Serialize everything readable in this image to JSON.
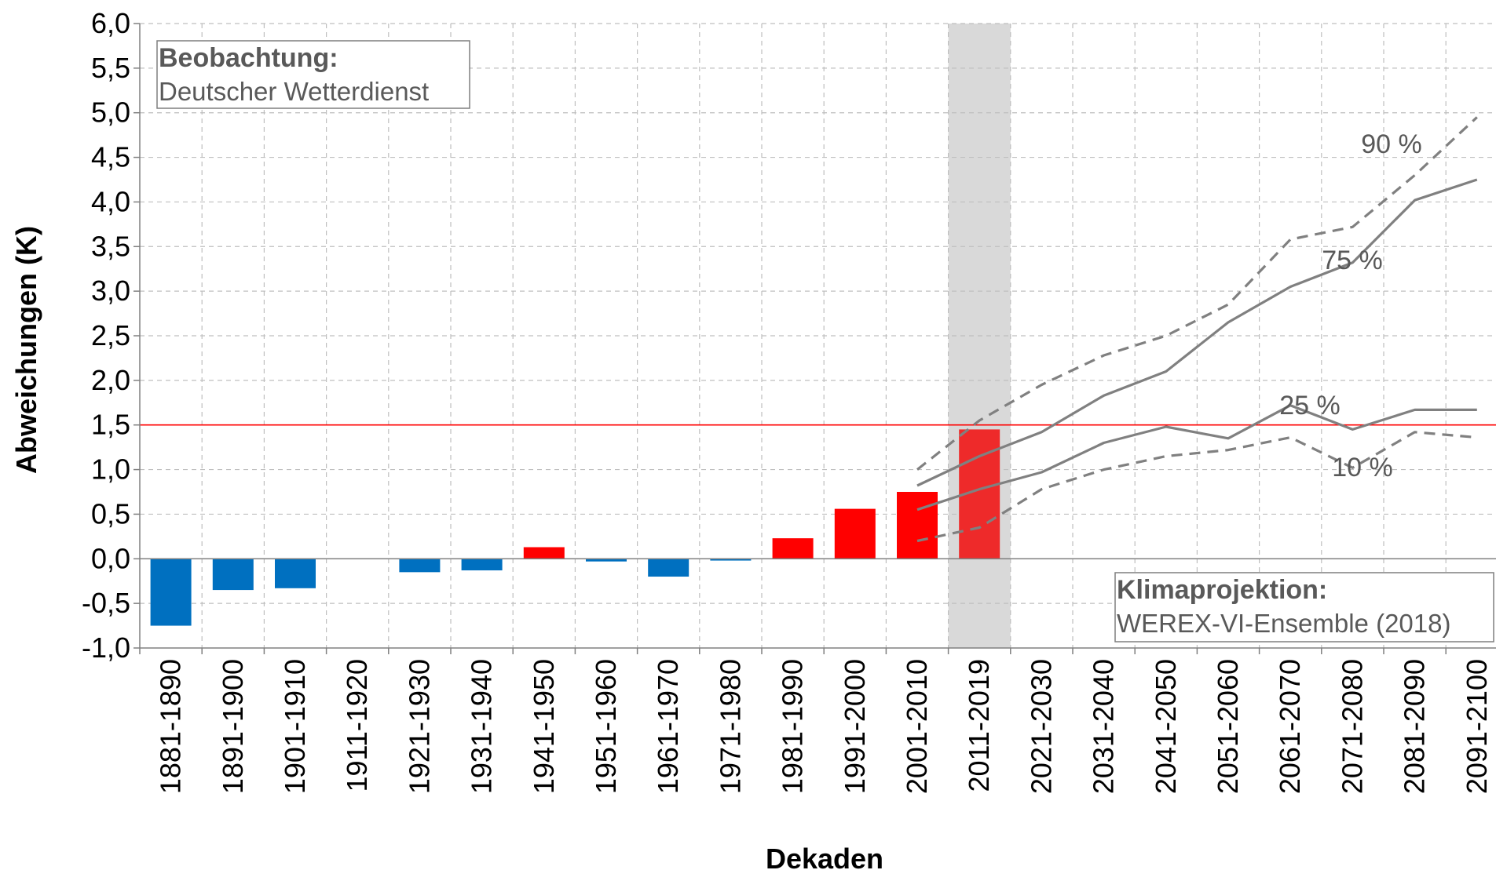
{
  "chart_data": {
    "type": "bar",
    "xlabel": "Dekaden",
    "ylabel": "Abweichungen (K)",
    "ylim": [
      -1.0,
      6.0
    ],
    "ytick_step": 0.5,
    "y_tick_labels": [
      "-1,0",
      "-0,5",
      "0,0",
      "0,5",
      "1,0",
      "1,5",
      "2,0",
      "2,5",
      "3,0",
      "3,5",
      "4,0",
      "4,5",
      "5,0",
      "5,5",
      "6,0"
    ],
    "grid": true,
    "categories": [
      "1881-1890",
      "1891-1900",
      "1901-1910",
      "1911-1920",
      "1921-1930",
      "1931-1940",
      "1941-1950",
      "1951-1960",
      "1961-1970",
      "1971-1980",
      "1981-1990",
      "1991-2000",
      "2001-2010",
      "2011-2019",
      "2021-2030",
      "2031-2040",
      "2041-2050",
      "2051-2060",
      "2061-2070",
      "2071-2080",
      "2081-2090",
      "2091-2100"
    ],
    "observations": {
      "values": [
        -0.75,
        -0.35,
        -0.33,
        null,
        -0.15,
        -0.13,
        0.13,
        -0.03,
        -0.2,
        -0.02,
        0.23,
        0.56,
        0.75,
        1.45
      ],
      "positive_color": "#ff0000",
      "negative_color": "#0070c0",
      "highlight_color": "#ee2a2a"
    },
    "highlight_category": "2011-2019",
    "highlight_band_color": "#d9d9d9",
    "reference_line": {
      "y": 1.5,
      "color": "#ff0000"
    },
    "projections": {
      "start_category": "2001-2010",
      "line_color": "#808080",
      "series": [
        {
          "name": "90 %",
          "style": "dashed",
          "values": [
            1.0,
            1.55,
            1.95,
            2.28,
            2.5,
            2.85,
            3.58,
            3.72,
            4.3,
            4.95
          ]
        },
        {
          "name": "75 %",
          "style": "solid",
          "values": [
            0.82,
            1.15,
            1.42,
            1.83,
            2.1,
            2.65,
            3.05,
            3.32,
            4.02,
            4.25
          ]
        },
        {
          "name": "25 %",
          "style": "solid",
          "values": [
            0.55,
            0.78,
            0.97,
            1.3,
            1.48,
            1.35,
            1.72,
            1.45,
            1.67,
            1.67
          ]
        },
        {
          "name": "10 %",
          "style": "dashed",
          "values": [
            0.2,
            0.35,
            0.78,
            1.0,
            1.15,
            1.22,
            1.36,
            1.02,
            1.42,
            1.36
          ]
        }
      ]
    },
    "annotations": {
      "observation_box": {
        "title": "Beobachtung:",
        "subtitle": "Deutscher Wetterdienst"
      },
      "projection_box": {
        "title": "Klimaprojektion:",
        "subtitle": "WEREX-VI-Ensemble (2018)"
      }
    }
  }
}
